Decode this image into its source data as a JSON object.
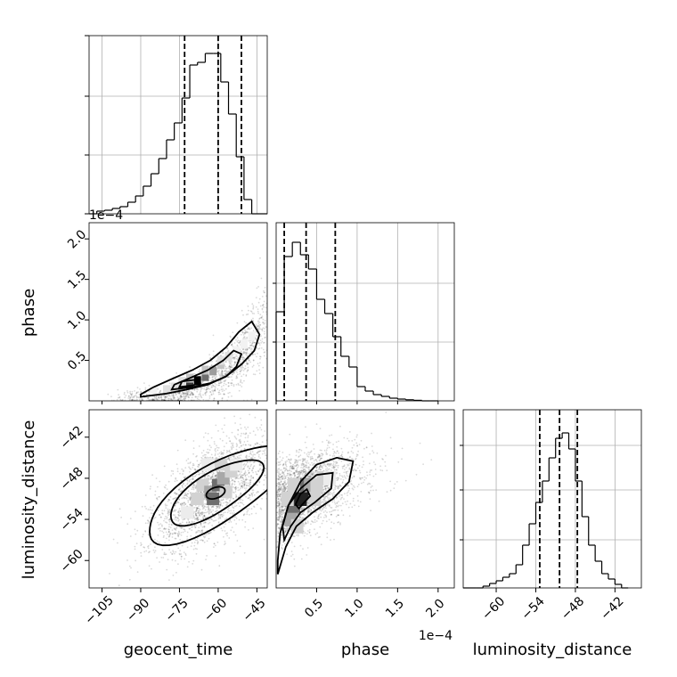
{
  "chart_data": [
    {
      "panel": "geocent_time marginal",
      "type": "histogram",
      "variable": "geocent_time",
      "xlim": [
        -110,
        -41
      ],
      "ylim": [
        0,
        1
      ],
      "bins": [
        -110,
        -107,
        -104,
        -101,
        -98,
        -95,
        -92,
        -89,
        -86,
        -83,
        -80,
        -77,
        -74,
        -71,
        -68,
        -65,
        -62,
        -59,
        -56,
        -53,
        -50,
        -47,
        -44,
        -41
      ],
      "counts": [
        0.0,
        0.015,
        0.02,
        0.03,
        0.04,
        0.065,
        0.1,
        0.155,
        0.225,
        0.31,
        0.415,
        0.51,
        0.65,
        0.835,
        0.85,
        0.9,
        0.9,
        0.74,
        0.56,
        0.32,
        0.08,
        0.0,
        0.0
      ],
      "quantiles": [
        -73,
        -60,
        -51
      ],
      "grid": true
    },
    {
      "panel": "phase vs geocent_time",
      "type": "scatter_density_contour",
      "x": "geocent_time",
      "y": "phase",
      "xlim": [
        -110,
        -41
      ],
      "ylim": [
        0.0,
        2.2
      ],
      "y_offset_text": "1e−4",
      "density_peak": [
        -67,
        0.25
      ]
    },
    {
      "panel": "phase marginal",
      "type": "histogram",
      "variable": "phase",
      "xlim": [
        0.0,
        2.2
      ],
      "ylim": [
        0,
        1
      ],
      "bins": [
        0.0,
        0.1,
        0.2,
        0.3,
        0.4,
        0.5,
        0.6,
        0.7,
        0.8,
        0.9,
        1.0,
        1.1,
        1.2,
        1.3,
        1.4,
        1.5,
        1.6,
        1.7,
        1.8,
        1.9,
        2.0
      ],
      "counts": [
        0.5,
        0.81,
        0.89,
        0.82,
        0.74,
        0.57,
        0.49,
        0.36,
        0.25,
        0.19,
        0.08,
        0.055,
        0.035,
        0.025,
        0.015,
        0.01,
        0.006,
        0.003,
        0.0,
        0.0
      ],
      "quantiles": [
        0.1,
        0.37,
        0.73
      ],
      "grid": true,
      "x_offset_text": "1e−4"
    },
    {
      "panel": "luminosity_distance vs geocent_time",
      "type": "scatter_density_contour",
      "x": "geocent_time",
      "y": "luminosity_distance",
      "xlim": [
        -110,
        -41
      ],
      "ylim": [
        -64,
        -38
      ],
      "density_peak": [
        -60,
        -49.5
      ]
    },
    {
      "panel": "luminosity_distance vs phase",
      "type": "scatter_density_contour",
      "x": "phase",
      "y": "luminosity_distance",
      "xlim": [
        0.0,
        2.2
      ],
      "ylim": [
        -64,
        -38
      ],
      "density_peak": [
        0.33,
        -50.5
      ]
    },
    {
      "panel": "luminosity_distance marginal",
      "type": "histogram",
      "variable": "luminosity_distance",
      "xlim": [
        -65,
        -38
      ],
      "ylim": [
        0,
        1
      ],
      "bins": [
        -65,
        -64,
        -63,
        -62,
        -61,
        -60,
        -59,
        -58,
        -57,
        -56,
        -55,
        -54,
        -53,
        -52,
        -51,
        -50,
        -49,
        -48,
        -47,
        -46,
        -45,
        -44,
        -43,
        -42,
        -41,
        -40
      ],
      "counts": [
        0.0,
        0.0,
        0.0,
        0.01,
        0.025,
        0.04,
        0.06,
        0.08,
        0.13,
        0.24,
        0.36,
        0.48,
        0.6,
        0.73,
        0.84,
        0.87,
        0.78,
        0.6,
        0.4,
        0.24,
        0.15,
        0.08,
        0.05,
        0.02,
        0.0
      ],
      "quantiles": [
        -53.4,
        -50.4,
        -47.7
      ],
      "grid": true
    }
  ],
  "axes": {
    "xlabels": [
      "geocent_time",
      "phase",
      "luminosity_distance"
    ],
    "ylabels": [
      "phase",
      "luminosity_distance"
    ],
    "offset_text": [
      "1e−4",
      "1e−4"
    ],
    "xticks_geocent_time": [
      "−105",
      "−90",
      "−75",
      "−60",
      "−45"
    ],
    "xticks_phase": [
      "0.5",
      "1.0",
      "1.5",
      "2.0"
    ],
    "xticks_luminosity_distance": [
      "−60",
      "−54",
      "−48",
      "−42"
    ],
    "yticks_phase": [
      "0.5",
      "1.0",
      "1.5",
      "2.0"
    ],
    "yticks_luminosity_distance": [
      "−60",
      "−54",
      "−48",
      "−42"
    ]
  }
}
